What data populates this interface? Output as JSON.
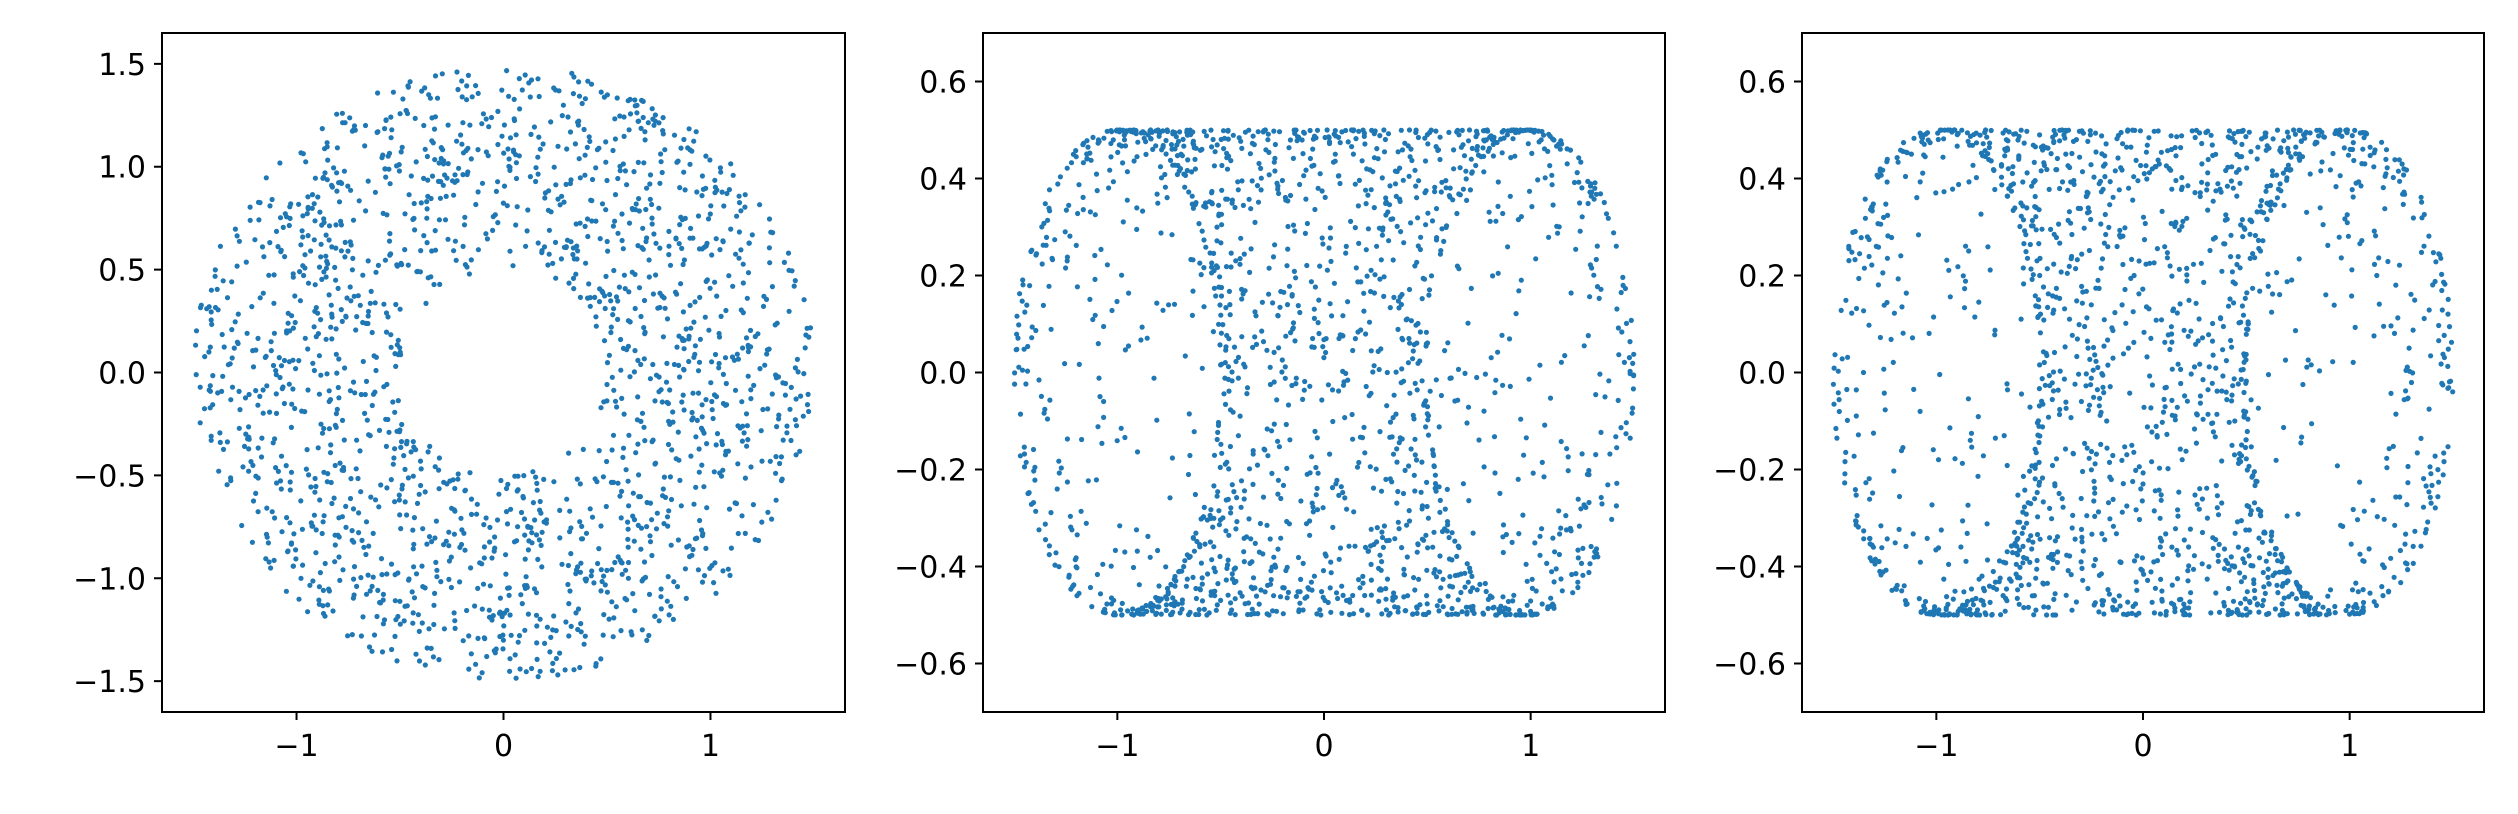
{
  "colors": {
    "points": "#1f77b4",
    "axes": "#000000",
    "background": "#ffffff"
  },
  "chart_data": [
    {
      "type": "scatter",
      "shape": "annulus",
      "title": "",
      "xlabel": "",
      "ylabel": "",
      "xlim": [
        -1.65,
        1.65
      ],
      "ylim": [
        -1.65,
        1.65
      ],
      "xticks": [
        -1,
        0,
        1
      ],
      "xtick_labels": [
        "−1",
        "0",
        "1"
      ],
      "yticks": [
        -1.5,
        -1.0,
        -0.5,
        0.0,
        0.5,
        1.0,
        1.5
      ],
      "ytick_labels": [
        "−1.5",
        "−1.0",
        "−0.5",
        "0.0",
        "0.5",
        "1.0",
        "1.5"
      ],
      "grid": false,
      "params": {
        "inner_radius": 0.5,
        "outer_radius": 1.5,
        "n_points": 1800
      }
    },
    {
      "type": "scatter",
      "shape": "torus-side-view",
      "title": "",
      "xlabel": "",
      "ylabel": "",
      "xlim": [
        -1.65,
        1.65
      ],
      "ylim": [
        -0.7,
        0.7
      ],
      "xticks": [
        -1,
        0,
        1
      ],
      "xtick_labels": [
        "−1",
        "0",
        "1"
      ],
      "yticks": [
        -0.6,
        -0.4,
        -0.2,
        0.0,
        0.2,
        0.4,
        0.6
      ],
      "ytick_labels": [
        "−0.6",
        "−0.4",
        "−0.2",
        "0.0",
        "0.2",
        "0.4",
        "0.6"
      ],
      "grid": false,
      "params": {
        "major_radius": 1.0,
        "minor_radius": 0.5,
        "n_points": 1800,
        "seed": 7
      }
    },
    {
      "type": "scatter",
      "shape": "torus-side-view",
      "title": "",
      "xlabel": "",
      "ylabel": "",
      "xlim": [
        -1.65,
        1.65
      ],
      "ylim": [
        -0.7,
        0.7
      ],
      "xticks": [
        -1,
        0,
        1
      ],
      "xtick_labels": [
        "−1",
        "0",
        "1"
      ],
      "yticks": [
        -0.6,
        -0.4,
        -0.2,
        0.0,
        0.2,
        0.4,
        0.6
      ],
      "ytick_labels": [
        "−0.6",
        "−0.4",
        "−0.2",
        "0.0",
        "0.2",
        "0.4",
        "0.6"
      ],
      "grid": false,
      "params": {
        "major_radius": 1.0,
        "minor_radius": 0.5,
        "n_points": 1800,
        "seed": 13
      }
    }
  ]
}
